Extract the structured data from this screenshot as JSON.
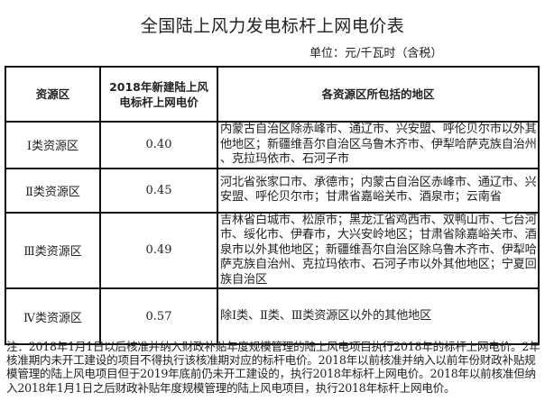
{
  "title": "全国陆上风力发电标杆上网电价表",
  "unit": "单位：元/千瓦时（含税）",
  "table": {
    "headers": [
      "资源区",
      "2018年新建陆上风电标杆上网电价",
      "各资源区所包括的地区"
    ],
    "rows": [
      {
        "zone": "Ⅰ类资源区",
        "price": "0.40",
        "regions": [
          "内蒙古自治区除赤峰市、通辽市、兴安盟、呼伦贝尔市以外其",
          "他地区；新疆维吾尔自治区乌鲁木齐市、伊犁哈萨克族自治州",
          "、克拉玛依市、石河子市"
        ]
      },
      {
        "zone": "Ⅱ类资源区",
        "price": "0.45",
        "regions": [
          "河北省张家口市、承德市；内蒙古自治区赤峰市、通辽市、兴",
          "安盟、呼伦贝尔市；甘肃省嘉峪关市、酒泉市；云南省"
        ]
      },
      {
        "zone": "Ⅲ类资源区",
        "price": "0.49",
        "regions": [
          "吉林省白城市、松原市；黑龙江省鸡西市、双鸭山市、七台河",
          "市、绥化市、伊春市，大兴安岭地区；甘肃省除嘉峪关市、酒",
          "泉市以外其他地区；新疆维吾尔自治区除乌鲁木齐市、伊犁哈",
          "萨克族自治州、克拉玛依市、石河子市以外其他地区；宁夏回",
          "族自治区"
        ]
      },
      {
        "zone": "Ⅳ类资源区",
        "price": "0.57",
        "regions": [
          "除Ⅰ类、Ⅱ类、Ⅲ类资源区以外的其他地区"
        ]
      }
    ]
  },
  "note": "注：2018年1月1日以后核准并纳入财政补贴年度规模管理的陆上风电项目执行2018年的标杆上网电价。2年核准期内未开工建设的项目不得执行该核准期对应的标杆电价。2018年以前核准并纳入以前年份财政补贴规模管理的陆上风电项目但于2019年底前仍未开工建设的，执行2018年标杆上网电价。2018年以前核准但纳入2018年1月1日之后财政补贴年度规模管理的陆上风电项目，执行2018年标杆上网电价。"
}
